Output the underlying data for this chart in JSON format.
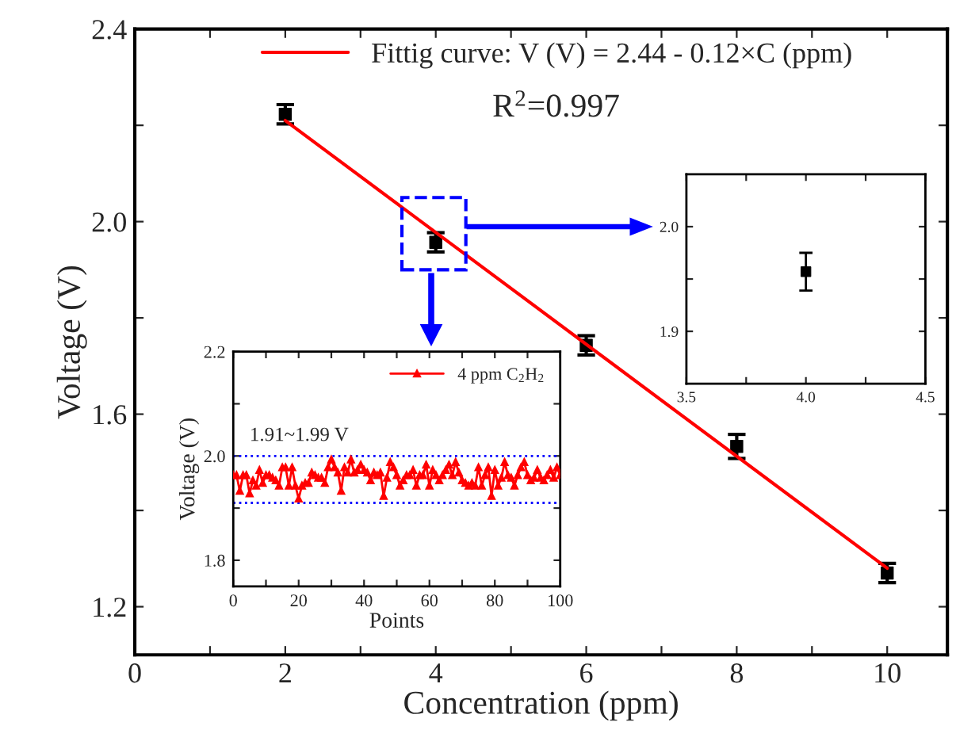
{
  "chart_data": [
    {
      "type": "scatter",
      "xlabel": "Concentration (ppm)",
      "ylabel": "Voltage (V)",
      "xlim": [
        0,
        10.8
      ],
      "ylim": [
        1.1,
        2.4
      ],
      "xticks": [
        0,
        {
          "value": 1,
          "label": null
        },
        2,
        {
          "value": 3,
          "label": null
        },
        4,
        {
          "value": 5,
          "label": null
        },
        6,
        {
          "value": 7,
          "label": null
        },
        8,
        {
          "value": 9,
          "label": null
        },
        10
      ],
      "yticks": [
        1.2,
        {
          "value": 1.4,
          "label": null
        },
        1.6,
        {
          "value": 1.8,
          "label": null
        },
        {
          "value": 2.0,
          "label": "2.0"
        },
        {
          "value": 2.2,
          "label": null
        },
        2.4
      ],
      "legend": "top",
      "marker": "square",
      "grid": false,
      "annotations": [
        "R$^{2}$=0.997"
      ],
      "series": [
        {
          "type": "scatter",
          "color": "#000000",
          "x": [
            2,
            4,
            6,
            8,
            10
          ],
          "values": [
            2.223,
            1.957,
            1.743,
            1.533,
            1.27
          ],
          "errors": [
            0.02,
            0.02,
            0.02,
            0.025,
            0.02
          ]
        },
        {
          "type": "line",
          "name": "Fittig curve: V (V) = 2.44 - 0.12×C (ppm)",
          "marker": "none",
          "color": "#ff0000",
          "x": [
            2,
            10
          ],
          "values": [
            2.21,
            1.28
          ]
        }
      ]
    },
    {
      "type": "line",
      "xlabel": "Points",
      "ylabel": "Voltage (V)",
      "xlim": [
        0,
        100
      ],
      "ylim": [
        1.75,
        2.2
      ],
      "xticks": [
        0,
        {
          "value": 10,
          "label": null
        },
        20,
        {
          "value": 30,
          "label": null
        },
        40,
        {
          "value": 50,
          "label": null
        },
        60,
        {
          "value": 70,
          "label": null
        },
        80,
        {
          "value": 90,
          "label": null
        },
        100
      ],
      "yticks": [
        1.8,
        {
          "value": 1.9,
          "label": null
        },
        {
          "value": 2.0,
          "label": "2.0"
        },
        {
          "value": 2.1,
          "label": null
        },
        2.2
      ],
      "legend": "top right",
      "marker": "triangle",
      "line_style": "solid",
      "grid": false,
      "annotations": [
        "1.91~1.99 V"
      ],
      "ref_lines": [
        {
          "axis": "y",
          "value": 2.0,
          "color": "#0000ff",
          "line_style": "dotted"
        },
        {
          "axis": "y",
          "value": 1.91,
          "color": "#0000ff",
          "line_style": "dotted"
        }
      ],
      "series": [
        {
          "name": "4 ppm C$_{2}$H$_{2}$",
          "color": "#ff0000",
          "x": [
            0,
            1,
            2,
            3,
            4,
            5,
            6,
            7,
            8,
            9,
            10,
            11,
            12,
            13,
            14,
            15,
            16,
            17,
            18,
            19,
            20,
            21,
            22,
            23,
            24,
            25,
            26,
            27,
            28,
            29,
            30,
            31,
            32,
            33,
            34,
            35,
            36,
            37,
            38,
            39,
            40,
            41,
            42,
            43,
            44,
            45,
            46,
            47,
            48,
            49,
            50,
            51,
            52,
            53,
            54,
            55,
            56,
            57,
            58,
            59,
            60,
            61,
            62,
            63,
            64,
            65,
            66,
            67,
            68,
            69,
            70,
            71,
            72,
            73,
            74,
            75,
            76,
            77,
            78,
            79,
            80,
            81,
            82,
            83,
            84,
            85,
            86,
            87,
            88,
            89,
            90,
            91,
            92,
            93,
            94,
            95,
            96,
            97,
            98,
            99,
            100
          ],
          "values": [
            1.963,
            1.963,
            1.933,
            1.963,
            1.963,
            1.928,
            1.953,
            1.943,
            1.973,
            1.948,
            1.963,
            1.963,
            1.958,
            1.953,
            1.943,
            1.978,
            1.978,
            1.943,
            1.978,
            1.943,
            1.918,
            1.943,
            1.948,
            1.948,
            1.968,
            1.963,
            1.958,
            1.958,
            1.948,
            1.978,
            1.993,
            1.978,
            1.968,
            1.933,
            1.978,
            1.968,
            1.993,
            1.968,
            1.973,
            1.983,
            1.973,
            1.968,
            1.953,
            1.968,
            1.963,
            1.968,
            1.923,
            1.958,
            1.988,
            1.978,
            1.963,
            1.943,
            1.953,
            1.963,
            1.963,
            1.973,
            1.943,
            1.963,
            1.963,
            1.983,
            1.943,
            1.973,
            1.963,
            1.953,
            1.963,
            1.973,
            1.983,
            1.963,
            1.988,
            1.968,
            1.953,
            1.948,
            1.943,
            1.948,
            1.943,
            1.978,
            1.943,
            1.963,
            1.978,
            1.923,
            1.973,
            1.943,
            1.958,
            1.988,
            1.963,
            1.958,
            1.943,
            1.963,
            1.978,
            1.988,
            1.963,
            1.953,
            1.958,
            1.973,
            1.958,
            1.953,
            1.963,
            1.973,
            1.958,
            1.978,
            1.963
          ]
        }
      ]
    },
    {
      "type": "scatter",
      "xlim": [
        3.5,
        4.5
      ],
      "ylim": [
        1.85,
        2.05
      ],
      "xticks": [
        {
          "value": 3.5,
          "label": "3.5"
        },
        {
          "value": 3.75,
          "label": null
        },
        {
          "value": 4.0,
          "label": "4.0"
        },
        {
          "value": 4.25,
          "label": null
        },
        {
          "value": 4.5,
          "label": "4.5"
        }
      ],
      "yticks": [
        {
          "value": 1.9,
          "label": "1.9"
        },
        {
          "value": 1.95,
          "label": null
        },
        {
          "value": 2.0,
          "label": "2.0"
        }
      ],
      "marker": "square",
      "grid": false,
      "series": [
        {
          "color": "#000000",
          "x": [
            4.0
          ],
          "values": [
            1.957
          ],
          "errors": [
            0.018
          ]
        }
      ]
    }
  ]
}
